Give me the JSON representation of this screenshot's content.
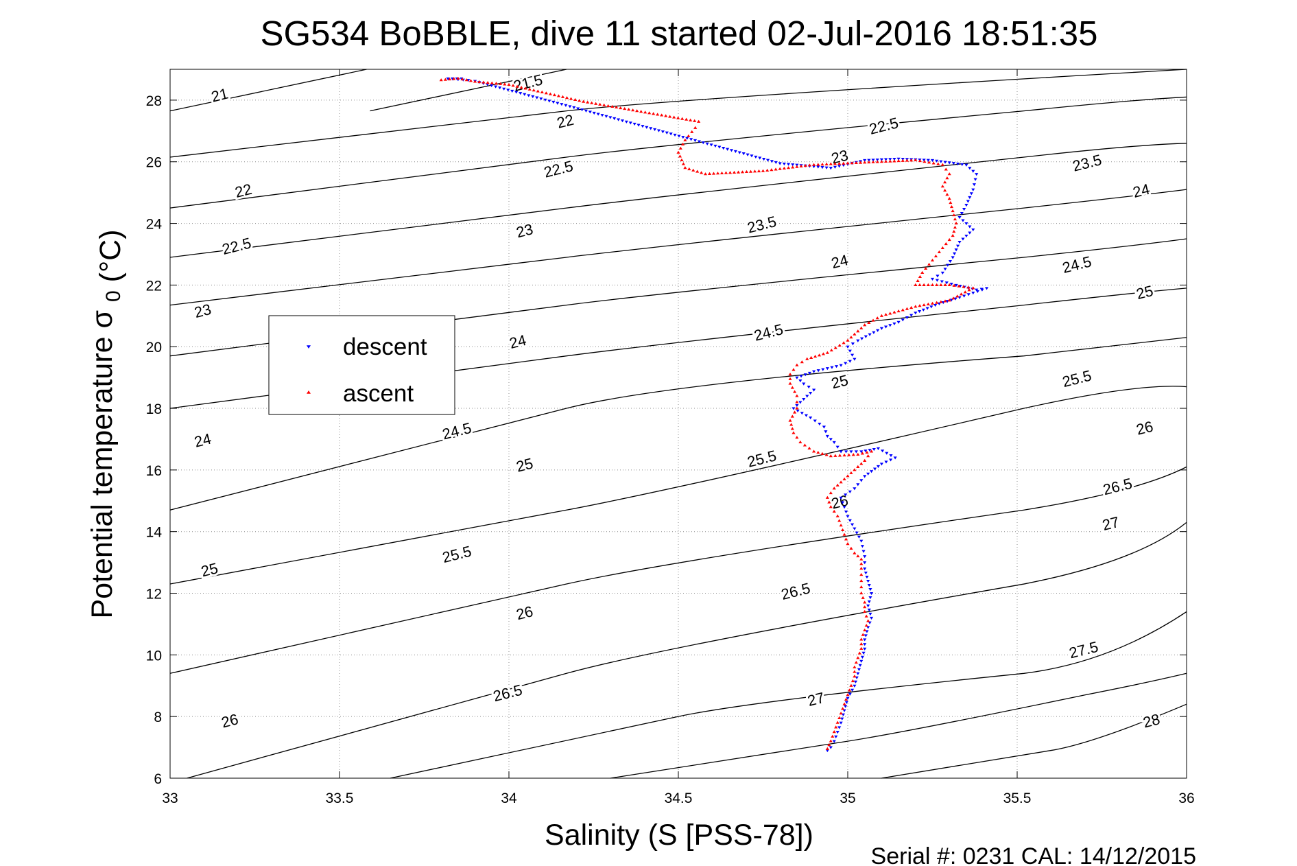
{
  "chart_data": {
    "type": "scatter",
    "title": "SG534 BoBBLE, dive 11 started 02-Jul-2016 18:51:35",
    "xlabel": "Salinity (S [PSS-78])",
    "ylabel": "Potential temperature",
    "ylabel_symbol": "σ",
    "ylabel_subscript": "0",
    "ylabel_unit": "(°C)",
    "xlim": [
      33,
      36
    ],
    "ylim": [
      6,
      29
    ],
    "xticks": [
      "33",
      "33.5",
      "34",
      "34.5",
      "35",
      "35.5",
      "36"
    ],
    "yticks": [
      "6",
      "8",
      "10",
      "12",
      "14",
      "16",
      "18",
      "20",
      "22",
      "24",
      "26",
      "28"
    ],
    "grid": true,
    "legend_position": "upper-left",
    "footer": "Serial #: 0231  CAL: 14/12/2015",
    "isopycnals": [
      {
        "label": "21",
        "points": [
          [
            33.0,
            27.65
          ],
          [
            33.58,
            29.0
          ]
        ],
        "label_at": [
          33.15,
          28.0
        ]
      },
      {
        "label": "21.5",
        "points": [
          [
            33.59,
            27.65
          ],
          [
            34.17,
            29.0
          ]
        ],
        "label_at": [
          34.06,
          28.4
        ]
      },
      {
        "label": "22",
        "points": [
          [
            33.0,
            26.15
          ],
          [
            34.17,
            27.65
          ],
          [
            36.0,
            29.0
          ]
        ],
        "label_at": [
          33.22,
          24.9
        ],
        "extra_labels": [
          [
            34.17,
            27.15
          ]
        ]
      },
      {
        "label": "22.5",
        "points": [
          [
            33.0,
            24.5
          ],
          [
            34.17,
            26.15
          ],
          [
            35.52,
            27.65
          ],
          [
            36.0,
            28.1
          ]
        ],
        "label_at": [
          33.2,
          23.1
        ],
        "extra_labels": [
          [
            34.15,
            25.6
          ],
          [
            35.11,
            27.0
          ]
        ]
      },
      {
        "label": "23",
        "points": [
          [
            33.0,
            22.9
          ],
          [
            34.17,
            24.5
          ],
          [
            35.52,
            26.15
          ],
          [
            36.0,
            26.6
          ]
        ],
        "label_at": [
          33.1,
          21.0
        ],
        "extra_labels": [
          [
            34.05,
            23.6
          ],
          [
            34.98,
            26.0
          ]
        ]
      },
      {
        "label": "23.5",
        "points": [
          [
            33.0,
            21.35
          ],
          [
            34.17,
            22.9
          ],
          [
            35.52,
            24.5
          ],
          [
            36.0,
            25.1
          ]
        ],
        "label_at": [
          33.8,
          20.4
        ],
        "extra_labels": [
          [
            34.75,
            23.8
          ],
          [
            35.71,
            25.8
          ]
        ]
      },
      {
        "label": "24",
        "points": [
          [
            33.0,
            19.7
          ],
          [
            34.17,
            21.35
          ],
          [
            35.52,
            22.9
          ],
          [
            36.0,
            23.5
          ]
        ],
        "label_at": [
          33.1,
          16.8
        ],
        "extra_labels": [
          [
            34.03,
            20.0
          ],
          [
            34.98,
            22.6
          ],
          [
            35.87,
            24.9
          ]
        ]
      },
      {
        "label": "24.5",
        "points": [
          [
            33.0,
            18.0
          ],
          [
            34.17,
            19.7
          ],
          [
            35.52,
            21.35
          ],
          [
            36.0,
            21.9
          ]
        ],
        "label_at": [
          33.85,
          17.1
        ],
        "extra_labels": [
          [
            34.77,
            20.3
          ],
          [
            35.68,
            22.5
          ]
        ]
      },
      {
        "label": "25",
        "points": [
          [
            33.0,
            14.7
          ],
          [
            34.17,
            18.0
          ],
          [
            35.52,
            19.7
          ],
          [
            36.0,
            20.3
          ]
        ],
        "label_at": [
          33.12,
          12.6
        ],
        "extra_labels": [
          [
            34.05,
            16.0
          ],
          [
            34.98,
            18.7
          ],
          [
            35.88,
            21.6
          ]
        ]
      },
      {
        "label": "25.5",
        "points": [
          [
            33.0,
            12.3
          ],
          [
            34.17,
            14.7
          ],
          [
            35.52,
            18.0
          ],
          [
            36.0,
            18.7
          ]
        ],
        "label_at": [
          33.85,
          13.1
        ],
        "extra_labels": [
          [
            34.75,
            16.2
          ],
          [
            35.68,
            18.8
          ]
        ]
      },
      {
        "label": "26",
        "points": [
          [
            33.0,
            9.4
          ],
          [
            34.17,
            12.3
          ],
          [
            35.52,
            14.7
          ],
          [
            36.0,
            16.1
          ]
        ],
        "label_at": [
          33.18,
          7.7
        ],
        "extra_labels": [
          [
            34.05,
            11.2
          ],
          [
            34.98,
            14.8
          ],
          [
            35.88,
            17.2
          ]
        ]
      },
      {
        "label": "26.5",
        "points": [
          [
            33.05,
            6.0
          ],
          [
            34.17,
            9.4
          ],
          [
            35.52,
            12.3
          ],
          [
            36.0,
            14.3
          ]
        ],
        "label_at": [
          34.0,
          8.6
        ],
        "extra_labels": [
          [
            34.85,
            11.9
          ],
          [
            35.8,
            15.3
          ]
        ]
      },
      {
        "label": "27",
        "points": [
          [
            33.65,
            6.0
          ],
          [
            34.5,
            8.0
          ],
          [
            35.52,
            9.4
          ],
          [
            36.0,
            11.4
          ]
        ],
        "label_at": [
          34.91,
          8.4
        ],
        "extra_labels": [
          [
            35.78,
            14.1
          ]
        ]
      },
      {
        "label": "27.5",
        "points": [
          [
            34.3,
            6.0
          ],
          [
            35.0,
            7.2
          ],
          [
            35.7,
            8.7
          ],
          [
            36.0,
            9.4
          ]
        ],
        "label_at": [
          35.7,
          10.0
        ]
      },
      {
        "label": "28",
        "points": [
          [
            35.1,
            6.0
          ],
          [
            35.6,
            6.9
          ],
          [
            36.0,
            8.4
          ]
        ],
        "label_at": [
          35.9,
          7.7
        ]
      }
    ],
    "series": [
      {
        "name": "descent",
        "color": "#0000ff",
        "marker": "triangle-down",
        "points": [
          [
            33.86,
            28.7
          ],
          [
            33.82,
            28.7
          ],
          [
            33.88,
            28.65
          ],
          [
            33.9,
            28.62
          ],
          [
            34.18,
            27.8
          ],
          [
            34.8,
            25.95
          ],
          [
            34.95,
            25.8
          ],
          [
            35.05,
            26.05
          ],
          [
            35.15,
            26.1
          ],
          [
            35.25,
            26.05
          ],
          [
            35.35,
            25.9
          ],
          [
            35.38,
            25.6
          ],
          [
            35.37,
            25.1
          ],
          [
            35.35,
            24.6
          ],
          [
            35.33,
            24.2
          ],
          [
            35.37,
            23.8
          ],
          [
            35.33,
            23.4
          ],
          [
            35.31,
            22.9
          ],
          [
            35.28,
            22.4
          ],
          [
            35.25,
            22.2
          ],
          [
            35.32,
            22.0
          ],
          [
            35.38,
            21.85
          ],
          [
            35.41,
            21.9
          ],
          [
            35.33,
            21.6
          ],
          [
            35.27,
            21.4
          ],
          [
            35.2,
            21.1
          ],
          [
            35.15,
            20.8
          ],
          [
            35.1,
            20.6
          ],
          [
            35.03,
            20.2
          ],
          [
            35.0,
            20.0
          ],
          [
            35.02,
            19.6
          ],
          [
            34.98,
            19.4
          ],
          [
            34.9,
            19.2
          ],
          [
            34.85,
            19.0
          ],
          [
            34.87,
            18.8
          ],
          [
            34.9,
            18.6
          ],
          [
            34.87,
            18.3
          ],
          [
            34.84,
            18.0
          ],
          [
            34.89,
            17.7
          ],
          [
            34.93,
            17.4
          ],
          [
            34.94,
            17.1
          ],
          [
            34.96,
            16.9
          ],
          [
            34.98,
            16.6
          ],
          [
            35.04,
            16.6
          ],
          [
            35.09,
            16.7
          ],
          [
            35.14,
            16.4
          ],
          [
            35.1,
            16.2
          ],
          [
            35.05,
            15.8
          ],
          [
            35.02,
            15.4
          ],
          [
            34.98,
            15.1
          ],
          [
            34.99,
            14.8
          ],
          [
            35.0,
            14.5
          ],
          [
            35.02,
            14.1
          ],
          [
            35.04,
            13.7
          ],
          [
            35.05,
            13.2
          ],
          [
            35.05,
            12.8
          ],
          [
            35.06,
            12.4
          ],
          [
            35.07,
            12.0
          ],
          [
            35.06,
            11.6
          ],
          [
            35.07,
            11.2
          ],
          [
            35.06,
            10.9
          ],
          [
            35.05,
            10.5
          ],
          [
            35.05,
            10.2
          ],
          [
            35.04,
            9.8
          ],
          [
            35.03,
            9.4
          ],
          [
            35.02,
            9.0
          ],
          [
            35.0,
            8.6
          ],
          [
            34.99,
            8.2
          ],
          [
            34.98,
            7.8
          ],
          [
            34.97,
            7.5
          ],
          [
            34.96,
            7.2
          ],
          [
            34.95,
            7.0
          ],
          [
            34.94,
            6.9
          ]
        ]
      },
      {
        "name": "ascent",
        "color": "#ff0000",
        "marker": "triangle-up",
        "points": [
          [
            34.94,
            6.95
          ],
          [
            34.95,
            7.2
          ],
          [
            34.96,
            7.5
          ],
          [
            34.97,
            7.8
          ],
          [
            34.98,
            8.1
          ],
          [
            34.99,
            8.4
          ],
          [
            35.0,
            8.7
          ],
          [
            35.01,
            9.0
          ],
          [
            35.02,
            9.3
          ],
          [
            35.02,
            9.6
          ],
          [
            35.03,
            9.9
          ],
          [
            35.04,
            10.2
          ],
          [
            35.04,
            10.5
          ],
          [
            35.05,
            10.8
          ],
          [
            35.06,
            11.1
          ],
          [
            35.05,
            11.4
          ],
          [
            35.05,
            11.7
          ],
          [
            35.04,
            12.0
          ],
          [
            35.04,
            12.4
          ],
          [
            35.04,
            12.8
          ],
          [
            35.04,
            13.1
          ],
          [
            35.02,
            13.3
          ],
          [
            35.0,
            13.6
          ],
          [
            34.99,
            13.9
          ],
          [
            34.98,
            14.2
          ],
          [
            34.97,
            14.5
          ],
          [
            34.95,
            14.8
          ],
          [
            34.94,
            15.1
          ],
          [
            34.96,
            15.4
          ],
          [
            34.99,
            15.7
          ],
          [
            35.02,
            16.0
          ],
          [
            35.05,
            16.3
          ],
          [
            35.07,
            16.6
          ],
          [
            35.03,
            16.5
          ],
          [
            34.95,
            16.45
          ],
          [
            34.9,
            16.6
          ],
          [
            34.86,
            16.9
          ],
          [
            34.84,
            17.2
          ],
          [
            34.83,
            17.6
          ],
          [
            34.85,
            18.0
          ],
          [
            34.85,
            18.4
          ],
          [
            34.83,
            18.8
          ],
          [
            34.83,
            19.1
          ],
          [
            34.85,
            19.4
          ],
          [
            34.88,
            19.6
          ],
          [
            34.94,
            19.8
          ],
          [
            35.0,
            20.2
          ],
          [
            35.05,
            20.7
          ],
          [
            35.1,
            21.0
          ],
          [
            35.2,
            21.3
          ],
          [
            35.3,
            21.5
          ],
          [
            35.37,
            21.9
          ],
          [
            35.3,
            22.0
          ],
          [
            35.2,
            22.0
          ],
          [
            35.22,
            22.4
          ],
          [
            35.25,
            22.8
          ],
          [
            35.28,
            23.2
          ],
          [
            35.31,
            23.6
          ],
          [
            35.32,
            24.0
          ],
          [
            35.31,
            24.4
          ],
          [
            35.3,
            24.8
          ],
          [
            35.28,
            25.2
          ],
          [
            35.3,
            25.6
          ],
          [
            35.28,
            25.9
          ],
          [
            35.2,
            26.05
          ],
          [
            35.1,
            26.0
          ],
          [
            34.9,
            25.9
          ],
          [
            34.75,
            25.7
          ],
          [
            34.58,
            25.6
          ],
          [
            34.52,
            25.8
          ],
          [
            34.5,
            26.3
          ],
          [
            34.52,
            26.7
          ],
          [
            34.55,
            27.1
          ],
          [
            34.56,
            27.3
          ],
          [
            34.22,
            27.95
          ],
          [
            34.0,
            28.5
          ],
          [
            33.9,
            28.6
          ],
          [
            33.85,
            28.7
          ],
          [
            33.8,
            28.65
          ]
        ]
      }
    ]
  }
}
